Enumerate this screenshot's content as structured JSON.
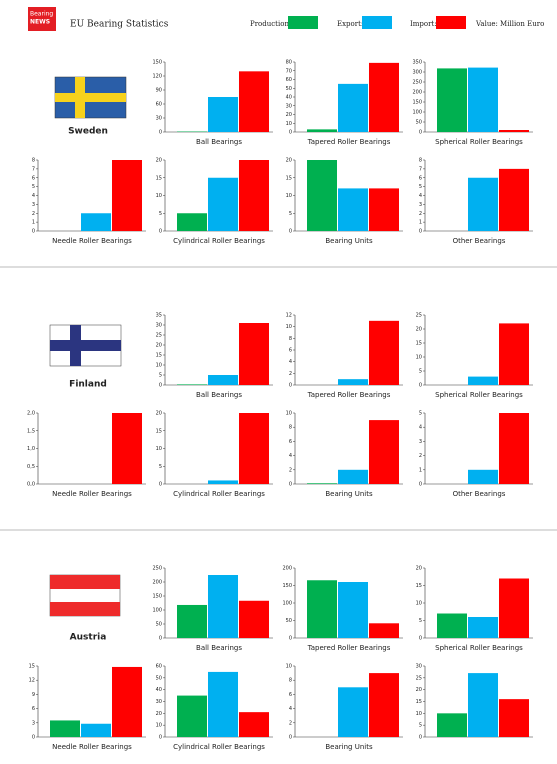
{
  "header": {
    "logo": [
      "Bearing",
      "NEWS"
    ],
    "title": "EU Bearing Statistics"
  },
  "legend": {
    "series": [
      {
        "name": "Production:",
        "color": "#00b050"
      },
      {
        "name": "Export:",
        "color": "#00b0f0"
      },
      {
        "name": "Import:",
        "color": "#ff0000"
      }
    ],
    "note": "Value: Million Euro"
  },
  "sections": [
    {
      "country": "Sweden",
      "charts": [
        {
          "type": "bar",
          "title": "Ball Bearings",
          "ylim": [
            0,
            150
          ],
          "yticks": [
            0,
            30,
            60,
            90,
            120,
            150
          ],
          "values": [
            1,
            75,
            130
          ]
        },
        {
          "type": "bar",
          "title": "Tapered Roller Bearings",
          "ylim": [
            0,
            80
          ],
          "yticks": [
            0,
            10,
            20,
            30,
            40,
            50,
            60,
            70,
            80
          ],
          "values": [
            3,
            55,
            79
          ]
        },
        {
          "type": "bar",
          "title": "Spherical Roller Bearings",
          "ylim": [
            0,
            350
          ],
          "yticks": [
            0,
            50,
            100,
            150,
            200,
            250,
            300,
            350
          ],
          "values": [
            318,
            322,
            10
          ]
        },
        {
          "type": "bar",
          "title": "Needle Roller Bearings",
          "ylim": [
            0,
            8
          ],
          "yticks": [
            0,
            1,
            2,
            3,
            4,
            5,
            6,
            7,
            8
          ],
          "values": [
            0,
            2,
            8
          ]
        },
        {
          "type": "bar",
          "title": "Cylindrical Roller Bearings",
          "ylim": [
            0,
            20
          ],
          "yticks": [
            0,
            5,
            10,
            15,
            20
          ],
          "values": [
            5,
            15,
            20
          ]
        },
        {
          "type": "bar",
          "title": "Bearing Units",
          "ylim": [
            0,
            20
          ],
          "yticks": [
            0,
            5,
            10,
            15,
            20
          ],
          "values": [
            20,
            12,
            12
          ]
        },
        {
          "type": "bar",
          "title": "Other Bearings",
          "ylim": [
            0,
            8
          ],
          "yticks": [
            0,
            1,
            2,
            3,
            4,
            5,
            6,
            7,
            8
          ],
          "values": [
            0,
            6,
            7
          ]
        }
      ]
    },
    {
      "country": "Finland",
      "charts": [
        {
          "type": "bar",
          "title": "Ball Bearings",
          "ylim": [
            0,
            35
          ],
          "yticks": [
            0,
            5,
            10,
            15,
            20,
            25,
            30,
            35
          ],
          "values": [
            0.3,
            5,
            31
          ]
        },
        {
          "type": "bar",
          "title": "Tapered Roller Bearings",
          "ylim": [
            0,
            12
          ],
          "yticks": [
            0,
            2,
            4,
            6,
            8,
            10,
            12
          ],
          "values": [
            0,
            1,
            11
          ]
        },
        {
          "type": "bar",
          "title": "Spherical Roller Bearings",
          "ylim": [
            0,
            25
          ],
          "yticks": [
            0,
            5,
            10,
            15,
            20,
            25
          ],
          "values": [
            0,
            3,
            22
          ]
        },
        {
          "type": "bar",
          "title": "Needle Roller Bearings",
          "ylim": [
            0,
            2
          ],
          "yticks": [
            {
              "value": 0,
              "label": "0,0"
            },
            {
              "value": 0.5,
              "label": "0,5"
            },
            {
              "value": 1,
              "label": "1,0"
            },
            {
              "value": 1.5,
              "label": "1,5"
            },
            {
              "value": 2,
              "label": "2,0"
            }
          ],
          "values": [
            0,
            0,
            2
          ]
        },
        {
          "type": "bar",
          "title": "Cylindrical Roller Bearings",
          "ylim": [
            0,
            20
          ],
          "yticks": [
            0,
            5,
            10,
            15,
            20
          ],
          "values": [
            0,
            1,
            20
          ]
        },
        {
          "type": "bar",
          "title": "Bearing Units",
          "ylim": [
            0,
            10
          ],
          "yticks": [
            0,
            2,
            4,
            6,
            8,
            10
          ],
          "values": [
            0.1,
            2,
            9
          ]
        },
        {
          "type": "bar",
          "title": "Other Bearings",
          "ylim": [
            0,
            5
          ],
          "yticks": [
            0,
            1,
            2,
            3,
            4,
            5
          ],
          "values": [
            0,
            1,
            5
          ]
        }
      ]
    },
    {
      "country": "Austria",
      "charts": [
        {
          "type": "bar",
          "title": "Ball Bearings",
          "ylim": [
            0,
            250
          ],
          "yticks": [
            0,
            50,
            100,
            150,
            200,
            250
          ],
          "values": [
            118,
            225,
            133
          ]
        },
        {
          "type": "bar",
          "title": "Tapered Roller Bearings",
          "ylim": [
            0,
            200
          ],
          "yticks": [
            0,
            50,
            100,
            150,
            200
          ],
          "values": [
            165,
            160,
            42
          ]
        },
        {
          "type": "bar",
          "title": "Spherical Roller Bearings",
          "ylim": [
            0,
            20
          ],
          "yticks": [
            0,
            5,
            10,
            15,
            20
          ],
          "values": [
            7,
            6,
            17
          ]
        },
        {
          "type": "bar",
          "title": "Needle Roller Bearings",
          "ylim": [
            0,
            15
          ],
          "yticks": [
            0,
            3,
            6,
            9,
            12,
            15
          ],
          "values": [
            3.5,
            2.8,
            14.8
          ]
        },
        {
          "type": "bar",
          "title": "Cylindrical Roller Bearings",
          "ylim": [
            0,
            60
          ],
          "yticks": [
            0,
            10,
            20,
            30,
            40,
            50,
            60
          ],
          "values": [
            35,
            55,
            21
          ]
        },
        {
          "type": "bar",
          "title": "Bearing Units",
          "ylim": [
            0,
            10
          ],
          "yticks": [
            0,
            2,
            4,
            6,
            8,
            10
          ],
          "values": [
            0,
            7,
            9
          ]
        },
        {
          "type": "bar",
          "ylim": [
            0,
            30
          ],
          "yticks": [
            0,
            5,
            10,
            15,
            20,
            25,
            30
          ],
          "values": [
            10,
            27,
            16
          ]
        }
      ]
    }
  ]
}
